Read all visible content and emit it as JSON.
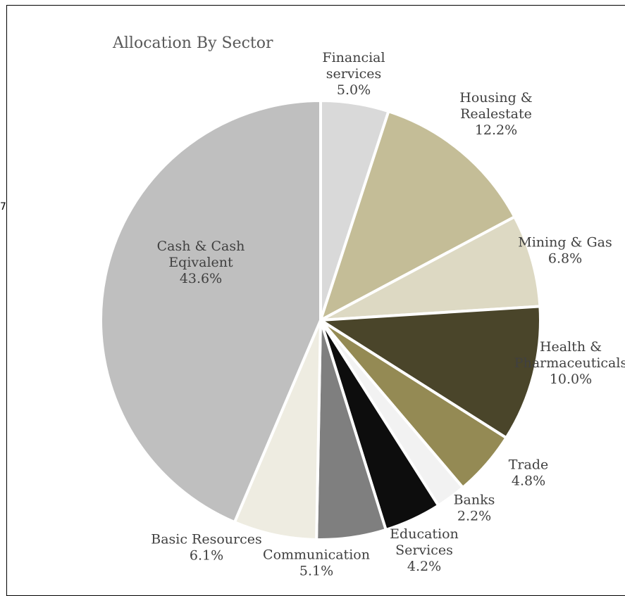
{
  "chart_data": {
    "type": "pie",
    "title": "Allocation By Sector",
    "slices": [
      {
        "label": [
          "Financial",
          "services"
        ],
        "value": 5.0,
        "value_label": "5.0%",
        "color": "#d9d9d9"
      },
      {
        "label": [
          "Housing &",
          "Realestate"
        ],
        "value": 12.2,
        "value_label": "12.2%",
        "color": "#c4bd97"
      },
      {
        "label": [
          "Mining & Gas"
        ],
        "value": 6.8,
        "value_label": "6.8%",
        "color": "#ddd9c3"
      },
      {
        "label": [
          "Health &",
          "Pharmaceuticals"
        ],
        "value": 10.0,
        "value_label": "10.0%",
        "color": "#4a452a"
      },
      {
        "label": [
          "Trade"
        ],
        "value": 4.8,
        "value_label": "4.8%",
        "color": "#948a54"
      },
      {
        "label": [
          "Banks"
        ],
        "value": 2.2,
        "value_label": "2.2%",
        "color": "#f2f2f2"
      },
      {
        "label": [
          "Education",
          "Services"
        ],
        "value": 4.2,
        "value_label": "4.2%",
        "color": "#0d0d0d"
      },
      {
        "label": [
          "Communication"
        ],
        "value": 5.1,
        "value_label": "5.1%",
        "color": "#7f7f7f"
      },
      {
        "label": [
          "Basic Resources"
        ],
        "value": 6.1,
        "value_label": "6.1%",
        "color": "#eeece1"
      },
      {
        "label": [
          "Cash & Cash",
          "Eqivalent"
        ],
        "value": 43.6,
        "value_label": "43.6%",
        "color": "#bfbfbf"
      }
    ]
  },
  "edge_mark": "7"
}
